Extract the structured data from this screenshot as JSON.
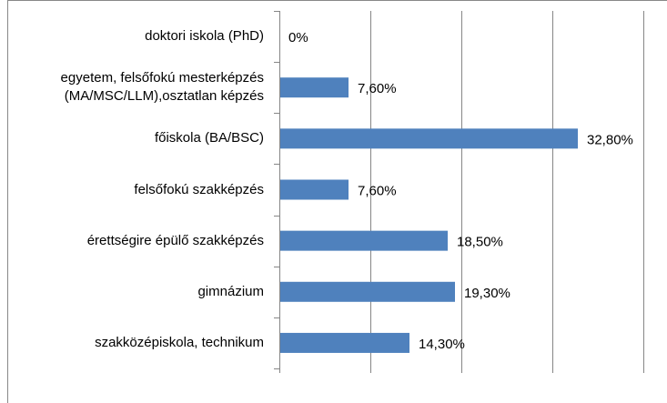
{
  "chart_data": {
    "type": "hbar",
    "categories": [
      "doktori iskola (PhD)",
      "egyetem, felsőfokú mesterképzés\n(MA/MSC/LLM),osztatlan képzés",
      "főiskola (BA/BSC)",
      "felsőfokú szakképzés",
      "érettségire épülő szakképzés",
      "gimnázium",
      "szakközépiskola, technikum"
    ],
    "values": [
      0,
      7.6,
      32.8,
      7.6,
      18.5,
      19.3,
      14.3
    ],
    "value_labels": [
      "0%",
      "7,60%",
      "32,80%",
      "7,60%",
      "18,50%",
      "19,30%",
      "14,30%"
    ],
    "color": "#4f81bd",
    "xlim": [
      0,
      40
    ],
    "xticks": [
      0,
      10,
      20,
      30,
      40
    ],
    "grid": true
  }
}
